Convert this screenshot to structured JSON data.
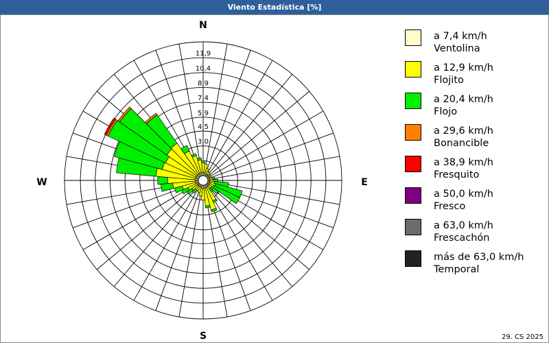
{
  "window": {
    "title": "Viento Estadística [%]"
  },
  "footer": "29. CS 2025",
  "legend": [
    {
      "line1": "a 7,4 km/h",
      "line2": "Ventolina",
      "color": "#fffcc8"
    },
    {
      "line1": "a 12,9 km/h",
      "line2": "Flojito",
      "color": "#ffff00"
    },
    {
      "line1": "a 20,4 km/h",
      "line2": "Flojo",
      "color": "#00ee00"
    },
    {
      "line1": "a 29,6 km/h",
      "line2": "Bonancible",
      "color": "#ff8000"
    },
    {
      "line1": "a 38,9 km/h",
      "line2": "Fresquito",
      "color": "#ff0000"
    },
    {
      "line1": "a 50,0 km/h",
      "line2": "Fresco",
      "color": "#800080"
    },
    {
      "line1": "a 63,0 km/h",
      "line2": "Frescachón",
      "color": "#6b6b6b"
    },
    {
      "line1": "más de 63,0 km/h",
      "line2": "Temporal",
      "color": "#222222"
    }
  ],
  "chart_data": {
    "type": "wind-rose",
    "title": "Viento Estadística [%]",
    "unit": "%",
    "compass_labels": {
      "n": "N",
      "e": "E",
      "s": "S",
      "w": "W"
    },
    "radial_ticks": [
      "3,0",
      "4,5",
      "5,9",
      "7,4",
      "8,9",
      "10,4",
      "11,9"
    ],
    "radial_tick_values": [
      3.0,
      4.5,
      5.9,
      7.4,
      8.9,
      10.4,
      11.9
    ],
    "radial_max": 13.5,
    "sector_width_deg": 10,
    "sectors": [
      {
        "dir": 0,
        "v": [
          0.3,
          1.0,
          0.2,
          0,
          0,
          0,
          0,
          0
        ]
      },
      {
        "dir": 10,
        "v": [
          0.3,
          0.9,
          0,
          0,
          0,
          0,
          0,
          0
        ]
      },
      {
        "dir": 20,
        "v": [
          0.2,
          0.6,
          0,
          0,
          0,
          0,
          0,
          0
        ]
      },
      {
        "dir": 30,
        "v": [
          0.2,
          0.4,
          0,
          0,
          0,
          0,
          0,
          0
        ]
      },
      {
        "dir": 40,
        "v": [
          0.2,
          0.3,
          0,
          0,
          0,
          0,
          0,
          0
        ]
      },
      {
        "dir": 50,
        "v": [
          0.2,
          0.2,
          0,
          0,
          0,
          0,
          0,
          0
        ]
      },
      {
        "dir": 60,
        "v": [
          0.2,
          0.2,
          0,
          0,
          0,
          0,
          0,
          0
        ]
      },
      {
        "dir": 70,
        "v": [
          0.2,
          0.2,
          0,
          0,
          0,
          0,
          0,
          0
        ]
      },
      {
        "dir": 80,
        "v": [
          0.2,
          0.3,
          0.2,
          0,
          0,
          0,
          0,
          0
        ]
      },
      {
        "dir": 90,
        "v": [
          0.2,
          0.4,
          0.4,
          0,
          0,
          0,
          0,
          0
        ]
      },
      {
        "dir": 100,
        "v": [
          0.2,
          0.5,
          1.4,
          0,
          0,
          0,
          0,
          0
        ]
      },
      {
        "dir": 110,
        "v": [
          0.2,
          0.6,
          2.8,
          0,
          0,
          0,
          0,
          0
        ]
      },
      {
        "dir": 120,
        "v": [
          0.2,
          0.5,
          2.9,
          0,
          0,
          0,
          0,
          0
        ]
      },
      {
        "dir": 130,
        "v": [
          0.2,
          0.4,
          0.8,
          0,
          0,
          0,
          0,
          0
        ]
      },
      {
        "dir": 140,
        "v": [
          0.2,
          0.4,
          0.3,
          0,
          0,
          0,
          0,
          0
        ]
      },
      {
        "dir": 150,
        "v": [
          0.3,
          1.5,
          0.2,
          0,
          0,
          0,
          0,
          0
        ]
      },
      {
        "dir": 160,
        "v": [
          0.3,
          2.3,
          0.2,
          0,
          0,
          0,
          0,
          0
        ]
      },
      {
        "dir": 170,
        "v": [
          0.3,
          1.8,
          0.2,
          0,
          0,
          0,
          0,
          0
        ]
      },
      {
        "dir": 180,
        "v": [
          0.3,
          1.2,
          0,
          0,
          0,
          0,
          0,
          0
        ]
      },
      {
        "dir": 190,
        "v": [
          0.3,
          0.8,
          0,
          0,
          0,
          0,
          0,
          0
        ]
      },
      {
        "dir": 200,
        "v": [
          0.2,
          0.6,
          0,
          0,
          0,
          0,
          0,
          0
        ]
      },
      {
        "dir": 210,
        "v": [
          0.2,
          0.5,
          0,
          0,
          0,
          0,
          0,
          0
        ]
      },
      {
        "dir": 220,
        "v": [
          0.2,
          0.5,
          0.4,
          0,
          0,
          0,
          0,
          0
        ]
      },
      {
        "dir": 230,
        "v": [
          0.2,
          0.7,
          0.6,
          0,
          0,
          0,
          0,
          0
        ]
      },
      {
        "dir": 240,
        "v": [
          0.2,
          1.0,
          0.7,
          0,
          0,
          0,
          0,
          0
        ]
      },
      {
        "dir": 250,
        "v": [
          0.3,
          1.4,
          0.8,
          0,
          0,
          0,
          0,
          0
        ]
      },
      {
        "dir": 260,
        "v": [
          0.3,
          2.3,
          1.2,
          0,
          0,
          0,
          0,
          0
        ]
      },
      {
        "dir": 270,
        "v": [
          0.3,
          2.8,
          1.0,
          0,
          0,
          0,
          0,
          0
        ]
      },
      {
        "dir": 280,
        "v": [
          0.3,
          4.0,
          4.0,
          0,
          0,
          0,
          0,
          0
        ]
      },
      {
        "dir": 290,
        "v": [
          0.3,
          3.5,
          5.0,
          0,
          0,
          0,
          0,
          0
        ]
      },
      {
        "dir": 300,
        "v": [
          0.3,
          3.4,
          6.4,
          0.2,
          0.2,
          0,
          0,
          0
        ]
      },
      {
        "dir": 310,
        "v": [
          0.3,
          3.7,
          5.8,
          0.2,
          0,
          0,
          0,
          0
        ]
      },
      {
        "dir": 320,
        "v": [
          0.3,
          3.8,
          3.5,
          0.2,
          0,
          0,
          0,
          0
        ]
      },
      {
        "dir": 330,
        "v": [
          0.3,
          2.5,
          0.6,
          0,
          0,
          0,
          0,
          0
        ]
      },
      {
        "dir": 340,
        "v": [
          0.3,
          1.8,
          0.2,
          0,
          0,
          0,
          0,
          0
        ]
      },
      {
        "dir": 350,
        "v": [
          0.3,
          1.3,
          0.2,
          0,
          0,
          0,
          0,
          0
        ]
      }
    ]
  }
}
